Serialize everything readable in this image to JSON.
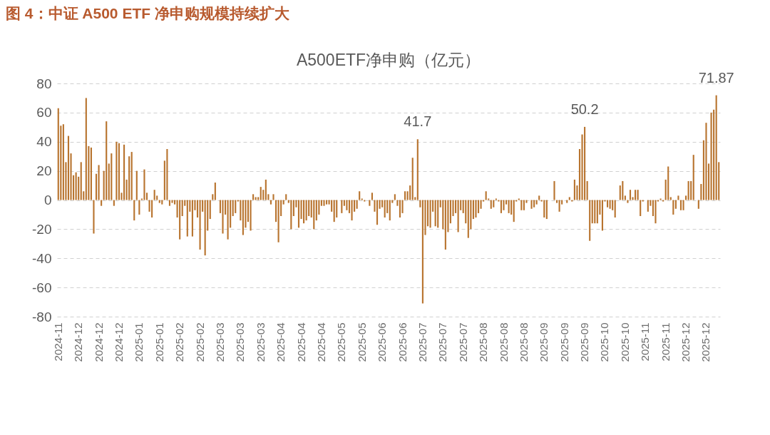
{
  "chart_data": {
    "type": "bar",
    "title": "A500ETF净申购（亿元）",
    "annotations": [
      "图 4：中证 A500 ETF 净申购规模持续扩大"
    ],
    "categories": [
      "2024-11",
      null,
      null,
      null,
      null,
      null,
      null,
      null,
      "2024-12",
      null,
      null,
      null,
      null,
      null,
      null,
      null,
      "2024-12",
      null,
      null,
      null,
      null,
      null,
      null,
      null,
      "2024-12",
      null,
      null,
      null,
      null,
      null,
      null,
      null,
      "2025-01",
      null,
      null,
      null,
      null,
      null,
      null,
      null,
      "2025-01",
      null,
      null,
      null,
      null,
      null,
      null,
      null,
      "2025-02",
      null,
      null,
      null,
      null,
      null,
      null,
      null,
      "2025-02",
      null,
      null,
      null,
      null,
      null,
      null,
      null,
      "2025-03",
      null,
      null,
      null,
      null,
      null,
      null,
      null,
      "2025-03",
      null,
      null,
      null,
      null,
      null,
      null,
      null,
      "2025-03",
      null,
      null,
      null,
      null,
      null,
      null,
      null,
      "2025-04",
      null,
      null,
      null,
      null,
      null,
      null,
      null,
      "2025-04",
      null,
      null,
      null,
      null,
      null,
      null,
      null,
      "2025-04",
      null,
      null,
      null,
      null,
      null,
      null,
      null,
      "2025-05",
      null,
      null,
      null,
      null,
      null,
      null,
      null,
      "2025-05",
      null,
      null,
      null,
      null,
      null,
      null,
      null,
      "2025-06",
      null,
      null,
      null,
      null,
      null,
      null,
      null,
      "2025-06",
      null,
      null,
      null,
      null,
      null,
      null,
      null,
      "2025-07",
      null,
      null,
      null,
      null,
      null,
      null,
      null,
      "2025-07",
      null,
      null,
      null,
      null,
      null,
      null,
      null,
      "2025-07",
      null,
      null,
      null,
      null,
      null,
      null,
      null,
      "2025-08",
      null,
      null,
      null,
      null,
      null,
      null,
      null,
      "2025-08",
      null,
      null,
      null,
      null,
      null,
      null,
      null,
      "2025-08",
      null,
      null,
      null,
      null,
      null,
      null,
      null,
      "2025-09",
      null,
      null,
      null,
      null,
      null,
      null,
      null,
      "2025-09",
      null,
      null,
      null,
      null,
      null,
      null,
      null,
      "2025-09",
      null,
      null,
      null,
      null,
      null,
      null,
      null,
      "2025-10",
      null,
      null,
      null,
      null,
      null,
      null,
      null,
      "2025-10",
      null,
      null,
      null,
      null,
      null,
      null,
      null,
      "2025-11",
      null,
      null,
      null,
      null,
      null,
      null,
      null,
      "2025-11",
      null,
      null,
      null,
      null,
      null,
      null,
      null,
      "2025-12",
      null,
      null,
      null,
      null,
      null,
      null,
      null,
      "2025-12",
      null,
      null,
      null,
      null,
      null
    ],
    "values": [
      63,
      51,
      52,
      26,
      44,
      32,
      17,
      19,
      16,
      26,
      6,
      70,
      37,
      36,
      -23,
      18,
      24,
      -4,
      20,
      54,
      25,
      32,
      -4,
      40,
      39,
      5,
      38,
      14,
      30,
      33,
      -14,
      20,
      -10,
      1,
      21,
      5,
      -8,
      -12,
      7,
      3,
      -2,
      -3,
      27,
      35,
      -4,
      -2,
      -3,
      -12,
      -27,
      -11,
      -4,
      -25,
      -8,
      -25,
      -7,
      -12,
      -34,
      -8,
      -38,
      -21,
      -13,
      4,
      12,
      0,
      -9,
      -23,
      -10,
      -27,
      -19,
      -11,
      -9,
      -1,
      -14,
      -24,
      -19,
      -15,
      -21,
      4,
      2,
      2,
      9,
      7,
      14,
      4,
      -3,
      4,
      -15,
      -29,
      -11,
      -3,
      4,
      -2,
      -20,
      -11,
      -5,
      -19,
      -13,
      -16,
      -14,
      -11,
      -12,
      -20,
      -14,
      -10,
      -4,
      -4,
      -3,
      -3,
      -8,
      -15,
      -12,
      0,
      -9,
      -4,
      -7,
      -9,
      -14,
      -8,
      -6,
      6,
      1,
      -1,
      0,
      -4,
      5,
      -8,
      -17,
      -6,
      -5,
      -12,
      -9,
      -14,
      -2,
      4,
      -4,
      -12,
      -9,
      6,
      6,
      10,
      29,
      2,
      41.7,
      -5,
      -71,
      -24,
      -18,
      -19,
      -8,
      -18,
      -19,
      -5,
      -20,
      -34,
      -22,
      -16,
      -11,
      -9,
      -22,
      -7,
      -9,
      -16,
      -26,
      -20,
      -13,
      -12,
      -9,
      -6,
      -1,
      6,
      1,
      -6,
      -5,
      1,
      -1,
      -9,
      -7,
      -3,
      -9,
      -10,
      -15,
      -1,
      1,
      -7,
      -7,
      -2,
      0,
      -6,
      -5,
      -3,
      3,
      -1,
      -12,
      -13,
      0,
      0,
      13,
      -2,
      -8,
      -3,
      0,
      -2,
      2,
      -1,
      14,
      10,
      35,
      45,
      50.2,
      13,
      -28,
      -16,
      -16,
      -16,
      -10,
      -21,
      -1,
      -5,
      -6,
      -7,
      -12,
      0,
      10,
      13,
      3,
      -2,
      7,
      2,
      7,
      7,
      -11,
      -1,
      0,
      -8,
      -4,
      -11,
      -16,
      -1,
      1,
      -1,
      14,
      23,
      2,
      -10,
      -6,
      3,
      -7,
      -7,
      3,
      13,
      13,
      31,
      0,
      -6,
      11,
      41,
      53,
      25,
      60,
      62,
      71.87,
      26
    ],
    "value_labels": [
      null,
      null,
      null,
      null,
      null,
      null,
      null,
      null,
      null,
      null,
      null,
      null,
      null,
      null,
      null,
      null,
      null,
      null,
      null,
      null,
      null,
      null,
      null,
      null,
      null,
      null,
      null,
      null,
      null,
      null,
      null,
      null,
      null,
      null,
      null,
      null,
      null,
      null,
      null,
      null,
      null,
      null,
      null,
      null,
      null,
      null,
      null,
      null,
      null,
      null,
      null,
      null,
      null,
      null,
      null,
      null,
      null,
      null,
      null,
      null,
      null,
      null,
      null,
      null,
      null,
      null,
      null,
      null,
      null,
      null,
      null,
      null,
      null,
      null,
      null,
      null,
      null,
      null,
      null,
      null,
      null,
      null,
      null,
      null,
      null,
      null,
      null,
      null,
      null,
      null,
      null,
      null,
      null,
      null,
      null,
      null,
      null,
      null,
      null,
      null,
      null,
      null,
      null,
      null,
      null,
      null,
      null,
      null,
      null,
      null,
      null,
      null,
      null,
      null,
      null,
      null,
      null,
      null,
      null,
      null,
      null,
      null,
      null,
      null,
      null,
      null,
      null,
      null,
      null,
      null,
      null,
      null,
      null,
      null,
      null,
      null,
      null,
      null,
      null,
      null,
      null,
      null,
      "41.7",
      null,
      null,
      null,
      null,
      null,
      null,
      null,
      null,
      null,
      null,
      null,
      null,
      null,
      null,
      null,
      null,
      null,
      null,
      null,
      null,
      null,
      null,
      null,
      null,
      null,
      null,
      null,
      null,
      null,
      null,
      null,
      null,
      null,
      null,
      null,
      null,
      null,
      null,
      null,
      null,
      null,
      null,
      null,
      null,
      null,
      null,
      null,
      null,
      null,
      null,
      null,
      null,
      null,
      null,
      null,
      null,
      null,
      null,
      null,
      null,
      null,
      null,
      null,
      null,
      null,
      "50.2",
      null,
      null,
      null,
      null,
      null,
      null,
      null,
      null,
      null,
      null,
      null,
      null,
      null,
      null,
      null,
      null,
      null,
      null,
      null,
      null,
      null,
      null,
      null,
      null,
      null,
      null,
      null,
      null,
      null,
      null,
      null,
      null,
      null,
      null,
      null,
      null,
      null,
      null,
      null,
      null,
      null,
      null,
      null,
      null,
      null,
      null,
      null,
      null,
      null,
      null,
      null,
      "71.87",
      null
    ],
    "color": "#b8742f",
    "ylim": [
      -80,
      80
    ],
    "yticks": [
      -80,
      -60,
      -40,
      -20,
      0,
      20,
      40,
      60,
      80
    ],
    "grid": "y"
  }
}
